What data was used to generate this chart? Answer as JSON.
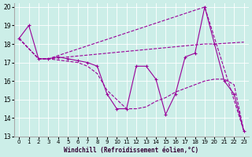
{
  "xlabel": "Windchill (Refroidissement éolien,°C)",
  "background_color": "#cceee8",
  "line_color": "#990099",
  "xlim": [
    -0.5,
    23.5
  ],
  "ylim": [
    13,
    20.2
  ],
  "yticks": [
    13,
    14,
    15,
    16,
    17,
    18,
    19,
    20
  ],
  "xticks": [
    0,
    1,
    2,
    3,
    4,
    5,
    6,
    7,
    8,
    9,
    10,
    11,
    12,
    13,
    14,
    15,
    16,
    17,
    18,
    19,
    20,
    21,
    22,
    23
  ],
  "series": [
    {
      "x": [
        0,
        1,
        2,
        3,
        4,
        5,
        6,
        7,
        8,
        9,
        10,
        11,
        12,
        13,
        14,
        15,
        16,
        17,
        18,
        19,
        20,
        21,
        22,
        23
      ],
      "y": [
        18.3,
        19.0,
        17.2,
        17.2,
        17.3,
        17.2,
        17.1,
        17.0,
        16.8,
        15.3,
        14.5,
        14.5,
        16.8,
        16.8,
        16.1,
        14.2,
        15.3,
        17.3,
        17.5,
        20.0,
        18.0,
        16.0,
        15.3,
        13.3
      ]
    },
    {
      "x": [
        0,
        2,
        3,
        19,
        23
      ],
      "y": [
        18.3,
        17.2,
        17.2,
        20.0,
        13.3
      ]
    },
    {
      "x": [
        0,
        2,
        3,
        19,
        20,
        23
      ],
      "y": [
        18.3,
        17.2,
        17.2,
        18.0,
        18.0,
        18.1
      ]
    },
    {
      "x": [
        0,
        2,
        3,
        6,
        7,
        8,
        9,
        10,
        11,
        12,
        13,
        14,
        15,
        16,
        17,
        18,
        19,
        20,
        21,
        22,
        23
      ],
      "y": [
        18.3,
        17.2,
        17.2,
        17.0,
        16.8,
        16.4,
        15.5,
        15.0,
        14.5,
        14.5,
        14.6,
        14.9,
        15.1,
        15.4,
        15.6,
        15.8,
        16.0,
        16.1,
        16.1,
        15.8,
        13.3
      ]
    }
  ]
}
